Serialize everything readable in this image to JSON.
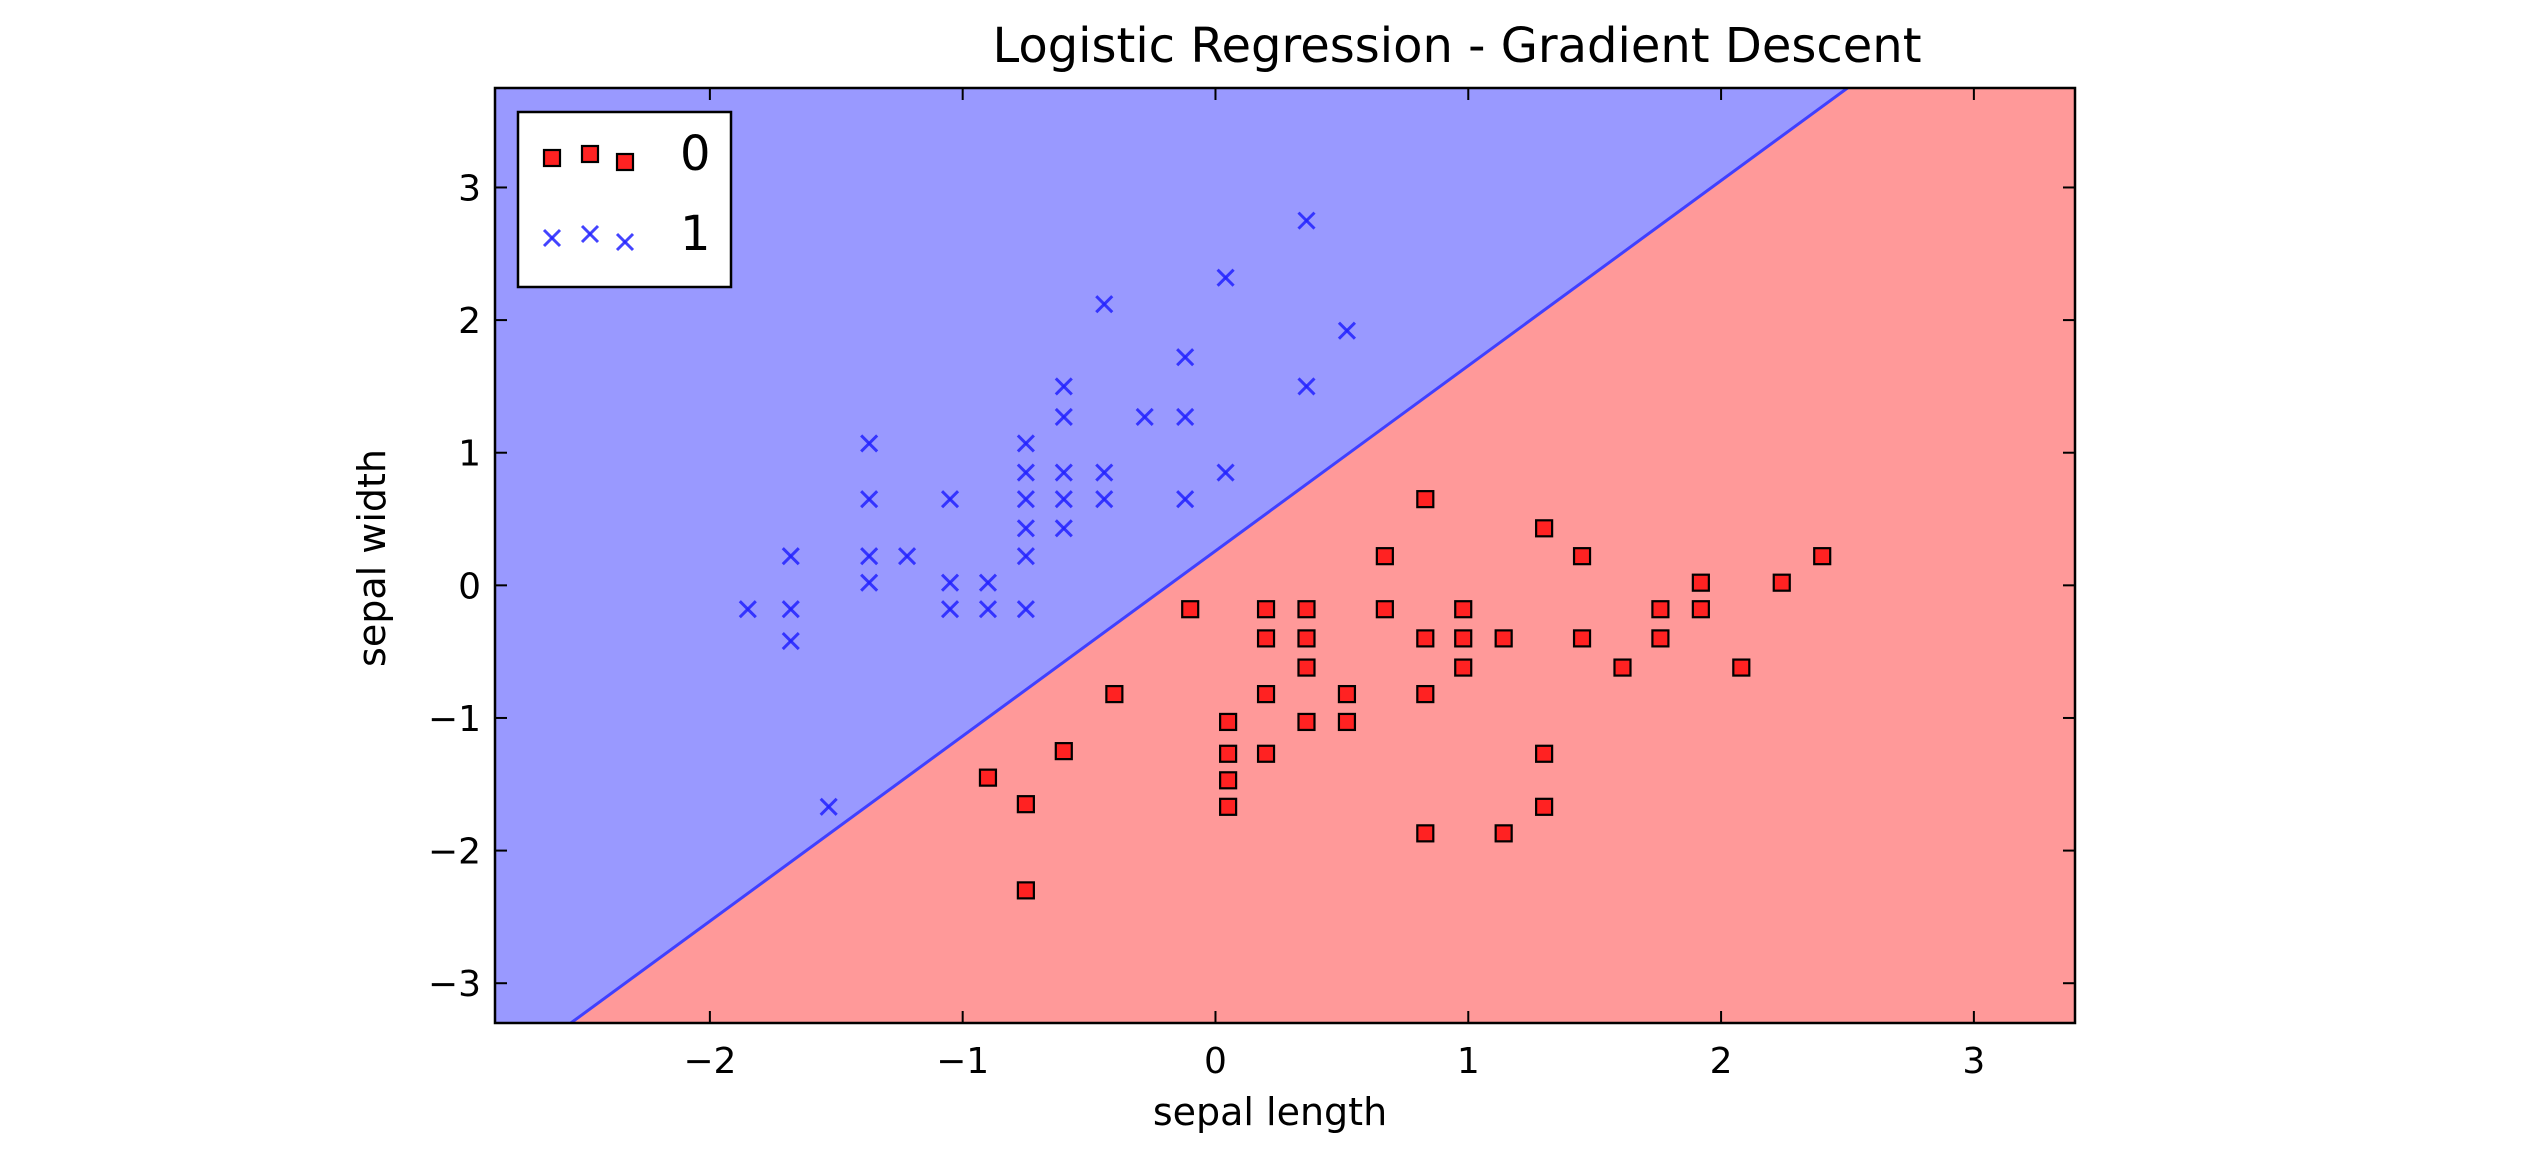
{
  "chart_data": {
    "type": "scatter",
    "title": "Logistic Regression - Gradient Descent",
    "xlabel": "sepal length",
    "ylabel": "sepal width",
    "xlim": [
      -2.85,
      3.4
    ],
    "ylim": [
      -3.3,
      3.75
    ],
    "xticks": [
      -2,
      -1,
      0,
      1,
      2,
      3
    ],
    "yticks": [
      -3,
      -2,
      -1,
      0,
      1,
      2,
      3
    ],
    "grid": false,
    "legend_position": "top-left",
    "decision_regions": {
      "boundary": [
        [
          -2.55,
          -3.3
        ],
        [
          2.5,
          3.75
        ]
      ],
      "upper_left_class": "1",
      "lower_right_class": "0",
      "colors": {
        "0": "#ff9999",
        "1": "#9999ff"
      },
      "boundary_color": "#4040ff"
    },
    "series": [
      {
        "name": "0",
        "marker": "square",
        "color": "#ff2222",
        "points": [
          [
            -0.9,
            -1.45
          ],
          [
            -0.75,
            -1.65
          ],
          [
            -0.75,
            -2.3
          ],
          [
            -0.6,
            -1.25
          ],
          [
            -0.4,
            -0.82
          ],
          [
            -0.1,
            -0.18
          ],
          [
            0.05,
            -1.03
          ],
          [
            0.05,
            -1.27
          ],
          [
            0.05,
            -1.47
          ],
          [
            0.05,
            -1.67
          ],
          [
            0.2,
            -0.18
          ],
          [
            0.2,
            -0.4
          ],
          [
            0.2,
            -0.82
          ],
          [
            0.2,
            -1.27
          ],
          [
            0.36,
            -0.18
          ],
          [
            0.36,
            -0.4
          ],
          [
            0.36,
            -0.62
          ],
          [
            0.36,
            -1.03
          ],
          [
            0.52,
            -0.82
          ],
          [
            0.52,
            -1.03
          ],
          [
            0.67,
            0.22
          ],
          [
            0.67,
            -0.18
          ],
          [
            0.83,
            0.65
          ],
          [
            0.83,
            -0.4
          ],
          [
            0.83,
            -0.82
          ],
          [
            0.83,
            -1.87
          ],
          [
            0.98,
            -0.18
          ],
          [
            0.98,
            -0.4
          ],
          [
            0.98,
            -0.62
          ],
          [
            1.14,
            -0.4
          ],
          [
            1.14,
            -1.87
          ],
          [
            1.3,
            0.43
          ],
          [
            1.3,
            -1.27
          ],
          [
            1.3,
            -1.67
          ],
          [
            1.45,
            0.22
          ],
          [
            1.45,
            -0.4
          ],
          [
            1.61,
            -0.62
          ],
          [
            1.76,
            -0.18
          ],
          [
            1.76,
            -0.4
          ],
          [
            1.92,
            0.02
          ],
          [
            1.92,
            -0.18
          ],
          [
            2.08,
            -0.62
          ],
          [
            2.24,
            0.02
          ],
          [
            2.4,
            0.22
          ]
        ]
      },
      {
        "name": "1",
        "marker": "x",
        "color": "#2222ff",
        "points": [
          [
            -1.85,
            -0.18
          ],
          [
            -1.68,
            0.22
          ],
          [
            -1.68,
            -0.18
          ],
          [
            -1.68,
            -0.42
          ],
          [
            -1.53,
            -1.67
          ],
          [
            -1.37,
            1.07
          ],
          [
            -1.37,
            0.65
          ],
          [
            -1.37,
            0.22
          ],
          [
            -1.37,
            0.02
          ],
          [
            -1.22,
            0.22
          ],
          [
            -1.05,
            0.65
          ],
          [
            -1.05,
            0.02
          ],
          [
            -1.05,
            -0.18
          ],
          [
            -0.9,
            0.02
          ],
          [
            -0.9,
            -0.18
          ],
          [
            -0.75,
            1.07
          ],
          [
            -0.75,
            0.85
          ],
          [
            -0.75,
            0.65
          ],
          [
            -0.75,
            0.43
          ],
          [
            -0.75,
            0.22
          ],
          [
            -0.75,
            -0.18
          ],
          [
            -0.6,
            1.5
          ],
          [
            -0.6,
            1.27
          ],
          [
            -0.6,
            0.85
          ],
          [
            -0.6,
            0.65
          ],
          [
            -0.6,
            0.43
          ],
          [
            -0.44,
            2.12
          ],
          [
            -0.44,
            0.85
          ],
          [
            -0.44,
            0.65
          ],
          [
            -0.28,
            1.27
          ],
          [
            -0.12,
            1.72
          ],
          [
            -0.12,
            1.27
          ],
          [
            -0.12,
            0.65
          ],
          [
            0.04,
            2.32
          ],
          [
            0.04,
            0.85
          ],
          [
            0.36,
            2.75
          ],
          [
            0.36,
            1.5
          ],
          [
            0.52,
            1.92
          ]
        ]
      }
    ]
  }
}
